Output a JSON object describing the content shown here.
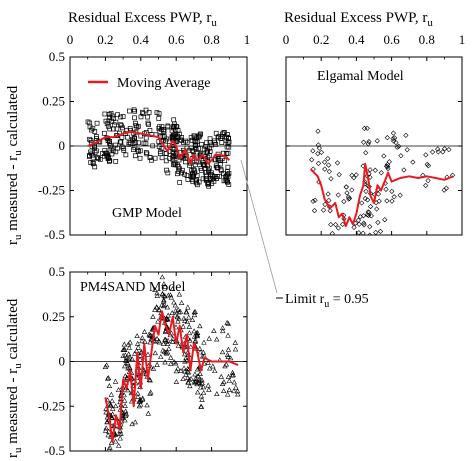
{
  "figure": {
    "top_axis_title_left": "Residual Excess PWP, r",
    "top_axis_title_right": "Residual Excess PWP, r",
    "top_axis_title_sub": "u",
    "ylabel_top_main": "r",
    "ylabel_top_sub": "u",
    "ylabel_top_rest": " measured - r",
    "ylabel_top_sub2": "u",
    "ylabel_top_tail": " calculated",
    "ylabel_bottom_main": "r",
    "ylabel_bottom_sub": "u",
    "ylabel_bottom_rest": " measured - r",
    "ylabel_bottom_sub2": "u",
    "ylabel_bottom_tail": " calculated",
    "annotation_text": "Limit r",
    "annotation_sub": "u",
    "annotation_value": " = 0.95",
    "colors": {
      "moving_average": "#e8191f",
      "markers": "#000000",
      "axis": "#000000"
    }
  },
  "chart_data": [
    {
      "type": "scatter",
      "title": "GMP Model",
      "legend": {
        "label": "Moving Average",
        "placement": "top-right"
      },
      "x_ticks": [
        "0",
        "0.2",
        "0.4",
        "0.6",
        "0.8",
        "1"
      ],
      "y_ticks": [
        "0.5",
        "0.25",
        "0",
        "-0.25",
        "-0.5"
      ],
      "xlim": [
        0,
        1
      ],
      "ylim": [
        -0.5,
        0.5
      ],
      "marker": "square",
      "series": [
        {
          "name": "Moving Average",
          "role": "line",
          "x": [
            0.1,
            0.15,
            0.2,
            0.25,
            0.3,
            0.35,
            0.4,
            0.45,
            0.5,
            0.52,
            0.55,
            0.58,
            0.6,
            0.62,
            0.65,
            0.68,
            0.7,
            0.72,
            0.75,
            0.78,
            0.8,
            0.82,
            0.85,
            0.88,
            0.9
          ],
          "y": [
            0.0,
            0.02,
            0.05,
            0.05,
            0.07,
            0.08,
            0.07,
            0.06,
            0.05,
            0.02,
            -0.03,
            0.03,
            0.0,
            -0.07,
            -0.02,
            -0.1,
            -0.05,
            -0.08,
            -0.05,
            -0.1,
            -0.08,
            -0.05,
            -0.05,
            -0.06,
            -0.08
          ]
        }
      ]
    },
    {
      "type": "scatter",
      "title": "Elgamal Model",
      "x_ticks": [
        "0",
        "0.2",
        "0.4",
        "0.6",
        "0.8",
        "1"
      ],
      "xlim": [
        0,
        1
      ],
      "ylim": [
        -0.5,
        0.5
      ],
      "marker": "diamond",
      "series": [
        {
          "name": "Moving Average",
          "role": "line",
          "x": [
            0.14,
            0.18,
            0.2,
            0.22,
            0.25,
            0.28,
            0.3,
            0.32,
            0.34,
            0.36,
            0.38,
            0.4,
            0.42,
            0.44,
            0.45,
            0.47,
            0.48,
            0.5,
            0.52,
            0.54,
            0.56,
            0.58,
            0.6,
            0.65,
            0.7,
            0.75,
            0.8,
            0.85,
            0.9,
            0.95
          ],
          "y": [
            -0.13,
            -0.17,
            -0.22,
            -0.3,
            -0.35,
            -0.32,
            -0.4,
            -0.38,
            -0.45,
            -0.4,
            -0.44,
            -0.38,
            -0.28,
            -0.22,
            -0.1,
            -0.2,
            -0.28,
            -0.32,
            -0.22,
            -0.25,
            -0.2,
            -0.15,
            -0.2,
            -0.18,
            -0.17,
            -0.18,
            -0.17,
            -0.18,
            -0.19,
            -0.17
          ]
        }
      ]
    },
    {
      "type": "scatter",
      "title": "PM4SAND Model",
      "y_ticks": [
        "0.5",
        "0.25",
        "0",
        "-0.25",
        "-0.5"
      ],
      "xlim": [
        0,
        1
      ],
      "ylim": [
        -0.5,
        0.5
      ],
      "marker": "triangle",
      "series": [
        {
          "name": "Moving Average",
          "role": "line",
          "x": [
            0.2,
            0.22,
            0.24,
            0.26,
            0.28,
            0.3,
            0.32,
            0.34,
            0.36,
            0.38,
            0.4,
            0.42,
            0.44,
            0.46,
            0.48,
            0.5,
            0.52,
            0.54,
            0.56,
            0.58,
            0.6,
            0.62,
            0.64,
            0.66,
            0.68,
            0.7,
            0.72,
            0.74,
            0.76,
            0.8,
            0.85,
            0.9,
            0.95
          ],
          "y": [
            -0.2,
            -0.3,
            -0.45,
            -0.3,
            -0.38,
            -0.1,
            -0.15,
            -0.05,
            -0.25,
            0.05,
            -0.15,
            0.1,
            -0.1,
            0.05,
            0.2,
            0.15,
            0.28,
            0.2,
            0.15,
            0.25,
            0.1,
            0.2,
            0.05,
            0.15,
            -0.05,
            0.1,
            0.05,
            -0.05,
            0.02,
            0.0,
            0.0,
            0.0,
            -0.02
          ]
        }
      ]
    }
  ]
}
